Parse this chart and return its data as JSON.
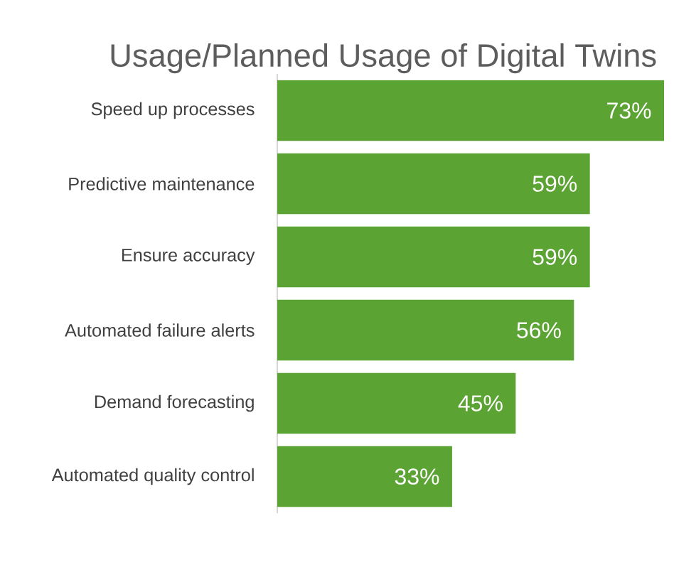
{
  "chart_data": {
    "type": "bar",
    "orientation": "horizontal",
    "title": "Usage/Planned Usage of Digital Twins",
    "categories": [
      "Speed up processes",
      "Predictive maintenance",
      "Ensure accuracy",
      "Automated failure alerts",
      "Demand forecasting",
      "Automated quality control"
    ],
    "values": [
      73,
      59,
      59,
      56,
      45,
      33
    ],
    "value_labels": [
      "73%",
      "59%",
      "59%",
      "56%",
      "45%",
      "33%"
    ],
    "tick_labels": "y",
    "color": "#5ba332"
  }
}
